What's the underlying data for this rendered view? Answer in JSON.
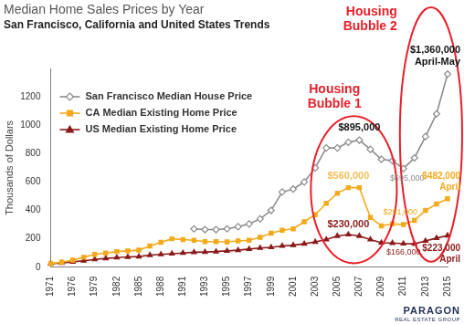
{
  "chart_data": {
    "type": "line",
    "title": "Median Home Sales Prices by Year",
    "subtitle": "San Francisco, California and United States Trends",
    "y_label": "Thousands of Dollars",
    "categories": [
      "1971",
      null,
      "1976",
      null,
      "1979",
      null,
      "1982",
      null,
      "1985",
      null,
      "1988",
      null,
      "1991",
      null,
      "1993",
      null,
      "1995",
      null,
      "1997",
      null,
      "1999",
      null,
      "2001",
      null,
      "2003",
      null,
      "2005",
      null,
      "2007",
      null,
      "2009",
      null,
      "2011",
      null,
      "2013",
      null,
      "2015"
    ],
    "series": [
      {
        "name": "San Francisco Median House Price",
        "color": "#8c8c8c",
        "marker": "diamond",
        "values": [
          null,
          null,
          null,
          null,
          null,
          null,
          null,
          null,
          null,
          null,
          null,
          null,
          null,
          270,
          265,
          265,
          270,
          285,
          305,
          340,
          400,
          530,
          550,
          600,
          700,
          840,
          840,
          880,
          895,
          830,
          760,
          750,
          695,
          770,
          920,
          1080,
          1360
        ]
      },
      {
        "name": "CA Median Existing Home Price",
        "color": "#f2aa1c",
        "marker": "square",
        "values": [
          25,
          35,
          50,
          70,
          90,
          100,
          110,
          115,
          120,
          150,
          175,
          200,
          195,
          190,
          180,
          180,
          178,
          185,
          190,
          210,
          240,
          260,
          270,
          320,
          370,
          450,
          520,
          560,
          560,
          350,
          291,
          305,
          300,
          330,
          400,
          445,
          482
        ]
      },
      {
        "name": "US Median Existing Home Price",
        "color": "#8b1a1a",
        "marker": "triangle",
        "values": [
          25,
          30,
          38,
          45,
          55,
          62,
          68,
          72,
          75,
          85,
          90,
          95,
          100,
          105,
          107,
          110,
          115,
          120,
          128,
          135,
          140,
          150,
          155,
          165,
          178,
          195,
          220,
          230,
          220,
          195,
          172,
          170,
          166,
          165,
          185,
          205,
          223
        ]
      }
    ],
    "ylim": [
      0,
      1400
    ],
    "yticks": [
      0,
      200,
      400,
      600,
      800,
      1000,
      1200
    ],
    "grid": false,
    "legend": "upper left",
    "annotations": [
      {
        "lines": [
          "Housing",
          "Bubble 1"
        ],
        "color": "#e8202a"
      },
      {
        "lines": [
          "Housing",
          "Bubble 2"
        ],
        "color": "#e8202a"
      },
      {
        "lines": [
          "$1,360,000",
          "April-May"
        ],
        "color": "#111111"
      },
      {
        "lines": [
          "$895,000"
        ],
        "color": "#111111"
      },
      {
        "lines": [
          "$695,000"
        ],
        "color": "#8c8c8c"
      },
      {
        "lines": [
          "$560,000"
        ],
        "color": "#f5be5a"
      },
      {
        "lines": [
          "$482,000",
          "April"
        ],
        "color": "#f2aa1c"
      },
      {
        "lines": [
          "$291,000"
        ],
        "color": "#f2aa1c"
      },
      {
        "lines": [
          "$230,000"
        ],
        "color": "#8b1a1a"
      },
      {
        "lines": [
          "$223,000",
          "April"
        ],
        "color": "#8b1a1a"
      },
      {
        "lines": [
          "$166,000"
        ],
        "color": "#8b1a1a"
      }
    ],
    "logo": [
      "PARAGON",
      "REAL ESTATE GROUP"
    ]
  }
}
